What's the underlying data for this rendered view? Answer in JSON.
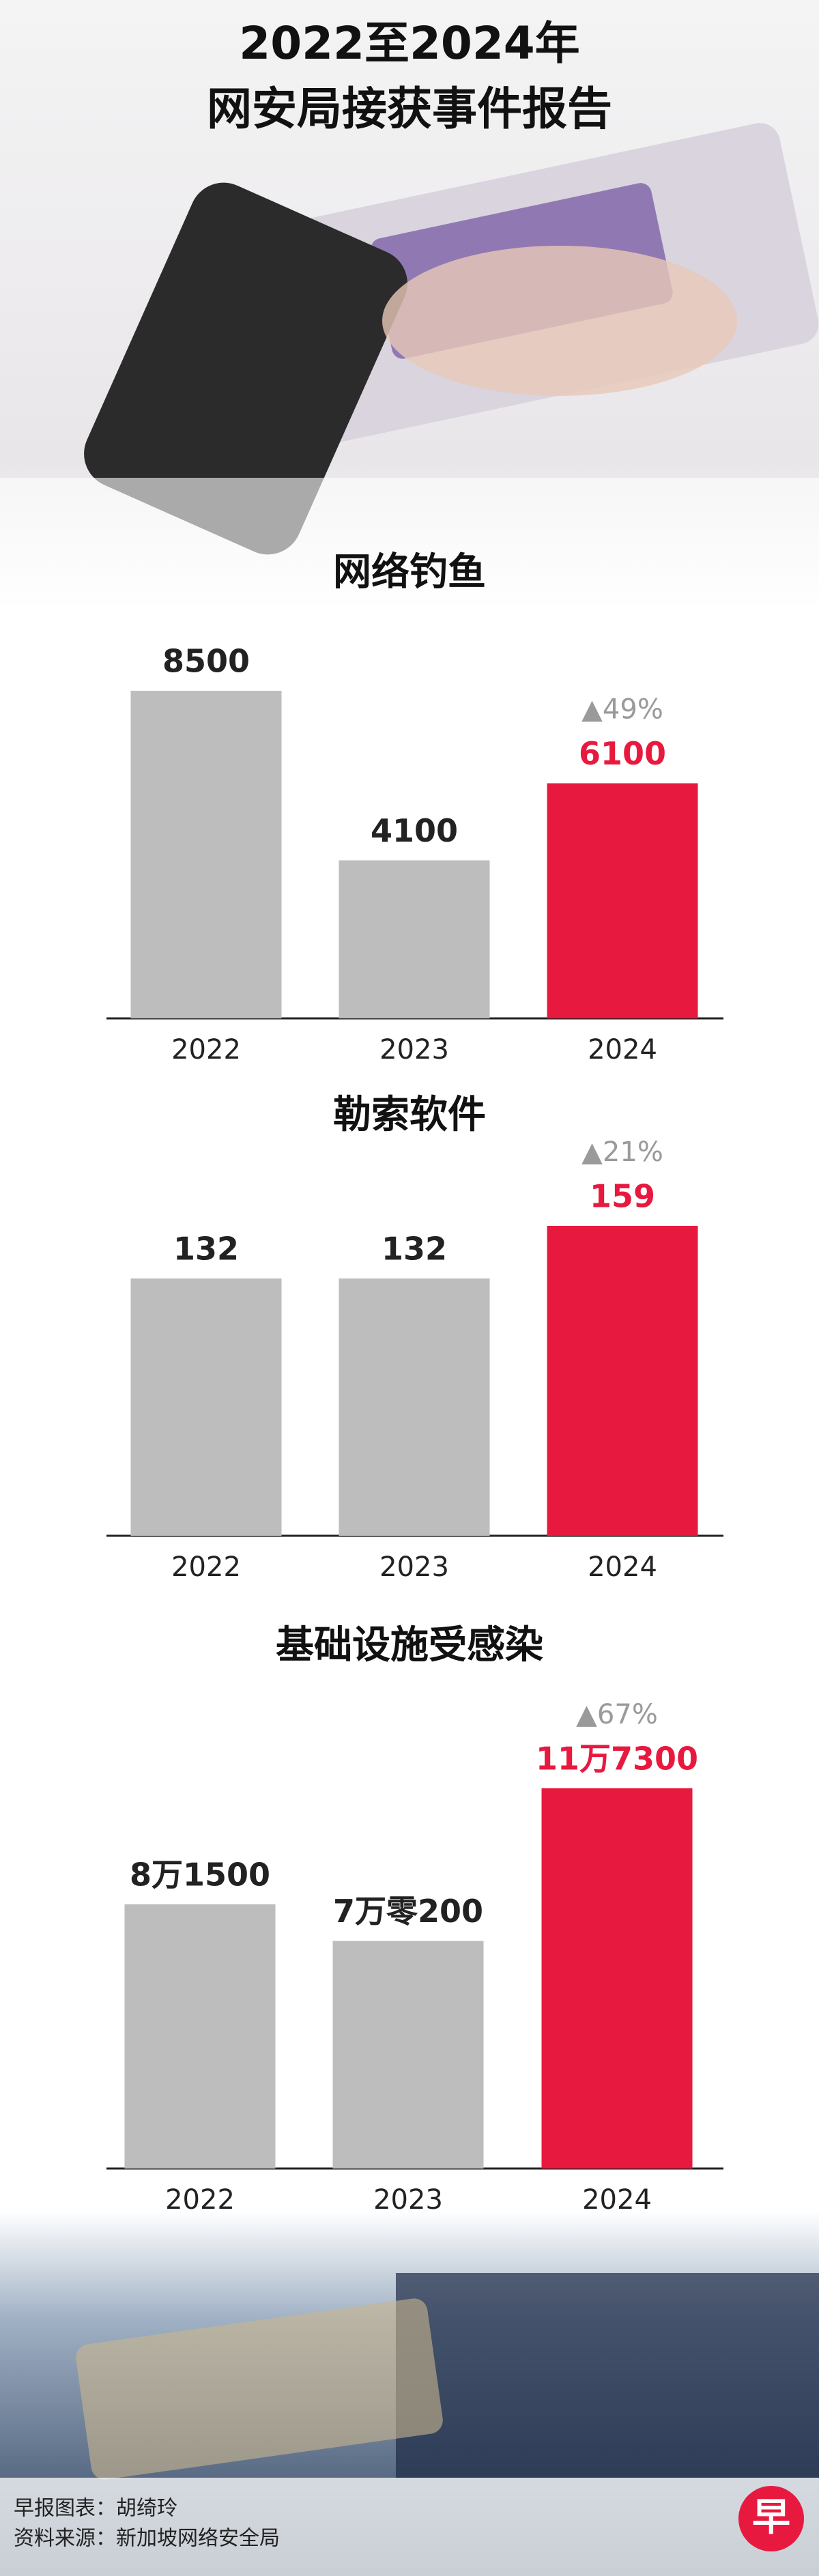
{
  "title_lines": [
    "2022至2024年",
    "网安局接获事件报告"
  ],
  "chart_data": [
    {
      "type": "bar",
      "title": "网络钓鱼",
      "categories": [
        "2022",
        "2023",
        "2024"
      ],
      "values": [
        8500,
        4100,
        6100
      ],
      "colors": [
        "#bdbdbd",
        "#bdbdbd",
        "#e8193f"
      ],
      "annotation": "▲49%"
    },
    {
      "type": "bar",
      "title": "勒索软件",
      "categories": [
        "2022",
        "2023",
        "2024"
      ],
      "values": [
        132,
        132,
        159
      ],
      "colors": [
        "#bdbdbd",
        "#bdbdbd",
        "#e8193f"
      ],
      "annotation": "▲21%"
    },
    {
      "type": "bar",
      "title": "基础设施受感染",
      "categories": [
        "2022",
        "2023",
        "2024"
      ],
      "values": [
        81500,
        70200,
        117300
      ],
      "value_labels": [
        "8万1500",
        "7万零200",
        "11万7300"
      ],
      "colors": [
        "#bdbdbd",
        "#bdbdbd",
        "#e8193f"
      ],
      "annotation": "▲67%"
    }
  ],
  "footer": {
    "credit": "早报图表：胡绮玲",
    "source": "资料来源：新加坡网络安全局"
  },
  "logo": "早"
}
